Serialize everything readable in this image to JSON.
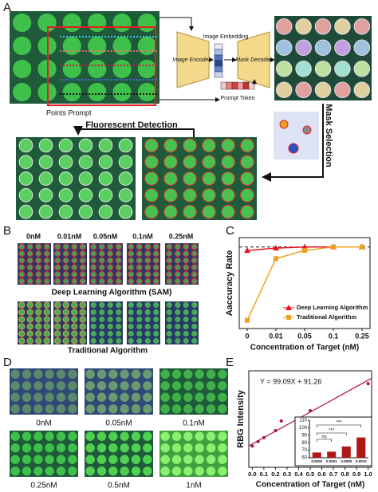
{
  "panels": {
    "a": "A",
    "b": "B",
    "c": "C",
    "d": "D",
    "e": "E"
  },
  "panel_a": {
    "points_prompt": "Points Prompt",
    "image_embedding": "Image Embedding",
    "image_encoder": "Image Encoder",
    "mask_decoder": "Mask Decoder",
    "prompt_token": "Prompt Token",
    "fluorescent_detection": "Fluorescent Detection",
    "mask_selection": "Mask Selection"
  },
  "panel_b": {
    "concentrations": [
      "0nM",
      "0.01nM",
      "0.05nM",
      "0.1nM",
      "0.25nM"
    ],
    "row_1": "Deep Learning Algorithm (SAM)",
    "row_2": "Traditional Algorithm"
  },
  "panel_d": {
    "concentrations": [
      "0nM",
      "0.05nM",
      "0.1nM",
      "0.25nM",
      "0.5nM",
      "1nM"
    ]
  },
  "chart_data": [
    {
      "type": "line",
      "x_label": "Concentration of Target (nM)",
      "y_label": "Aaccuracy Rate",
      "categories": [
        "0",
        "0.01",
        "0.05",
        "0.1",
        "0.25"
      ],
      "ylim": [
        0.3,
        1.08
      ],
      "reference_line": 1.0,
      "legend": "lower-right",
      "series": [
        {
          "name": "Deep Learning Algorithm",
          "color": "#e8141c",
          "marker": "triangle",
          "values": [
            0.97,
            0.99,
            1.0,
            1.0,
            1.0
          ]
        },
        {
          "name": "Traditional Algorithm",
          "color": "#f0a020",
          "marker": "square",
          "values": [
            0.37,
            0.9,
            0.97,
            1.0,
            1.0
          ]
        }
      ]
    },
    {
      "type": "scatter",
      "x_label": "Concentration of Target (nM)",
      "y_label": "RBG Intensity",
      "equation": "Y = 99.09X + 91.26",
      "fit": {
        "slope": 99.09,
        "intercept": 91.26
      },
      "color": "#b0103a",
      "x": [
        0,
        0.05,
        0.1,
        0.2,
        0.25,
        0.5,
        1.0
      ],
      "values": [
        88,
        95,
        101,
        112,
        127,
        143,
        185
      ],
      "xlim": [
        -0.03,
        1.03
      ],
      "ylim": [
        55,
        205
      ],
      "xticks": [
        {
          "value": 0,
          "label": "0.0"
        },
        0.1,
        0.2,
        0.3,
        0.4,
        0.5,
        0.6,
        0.7,
        0.8,
        0.9,
        {
          "value": 1,
          "label": "1.0"
        }
      ]
    },
    {
      "type": "bar",
      "categories": [
        "0.0000",
        "0.0001",
        "0.0005",
        "0.0010"
      ],
      "values": [
        67,
        68,
        75,
        87
      ],
      "color": "#b01818",
      "ylim": [
        60,
        110
      ],
      "yticks": [
        60,
        70,
        80,
        90,
        100,
        110
      ],
      "annotations": [
        "ns",
        "***",
        "***"
      ]
    }
  ]
}
